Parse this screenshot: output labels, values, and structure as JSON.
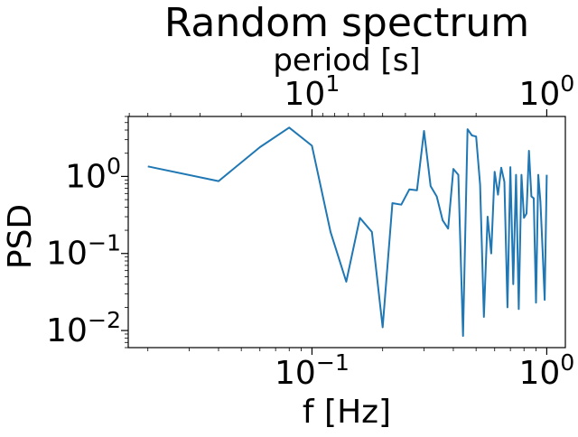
{
  "chart_data": {
    "type": "line",
    "title": "Random spectrum",
    "xlabel": "f [Hz]",
    "ylabel": "PSD",
    "secondary_xlabel": "period [s]",
    "x_scale": "log",
    "y_scale": "log",
    "secondary_x_scale": "log (reciprocal of f)",
    "xlim": [
      0.0165,
      1.2
    ],
    "ylim": [
      0.006,
      6.0
    ],
    "secondary_xlim": [
      60.6,
      0.833
    ],
    "xticks": [
      {
        "value": 0.1,
        "base": "10",
        "exp": "−1"
      },
      {
        "value": 1.0,
        "base": "10",
        "exp": "0"
      }
    ],
    "yticks": [
      {
        "value": 0.01,
        "base": "10",
        "exp": "−2"
      },
      {
        "value": 0.1,
        "base": "10",
        "exp": "−1"
      },
      {
        "value": 1.0,
        "base": "10",
        "exp": "0"
      }
    ],
    "secondary_xticks": [
      {
        "value": 10,
        "base": "10",
        "exp": "1"
      },
      {
        "value": 1,
        "base": "10",
        "exp": "0"
      }
    ],
    "grid": false,
    "line_color": "#1f77b4",
    "series": [
      {
        "x": [
          0.02,
          0.04,
          0.06,
          0.08,
          0.1,
          0.12,
          0.14,
          0.16,
          0.18,
          0.2,
          0.22,
          0.24,
          0.26,
          0.28,
          0.3,
          0.32,
          0.34,
          0.36,
          0.38,
          0.4,
          0.42,
          0.44,
          0.46,
          0.48,
          0.5,
          0.52,
          0.54,
          0.56,
          0.58,
          0.6,
          0.62,
          0.64,
          0.66,
          0.68,
          0.7,
          0.72,
          0.74,
          0.76,
          0.78,
          0.8,
          0.82,
          0.84,
          0.86,
          0.88,
          0.9,
          0.92,
          0.94,
          0.96,
          0.98,
          1.0
        ],
        "y": [
          1.35,
          0.87,
          2.4,
          4.3,
          2.5,
          0.19,
          0.043,
          0.29,
          0.19,
          0.011,
          0.45,
          0.43,
          0.68,
          0.66,
          3.9,
          0.75,
          0.55,
          0.27,
          0.21,
          1.25,
          1.05,
          0.0085,
          4.1,
          3.4,
          3.3,
          0.78,
          0.015,
          0.3,
          0.1,
          1.15,
          0.58,
          1.3,
          0.85,
          0.02,
          1.32,
          0.04,
          1.05,
          0.019,
          1.05,
          0.29,
          0.33,
          2.15,
          0.55,
          0.52,
          0.023,
          1.05,
          0.47,
          0.11,
          0.025,
          1.05
        ]
      }
    ]
  }
}
